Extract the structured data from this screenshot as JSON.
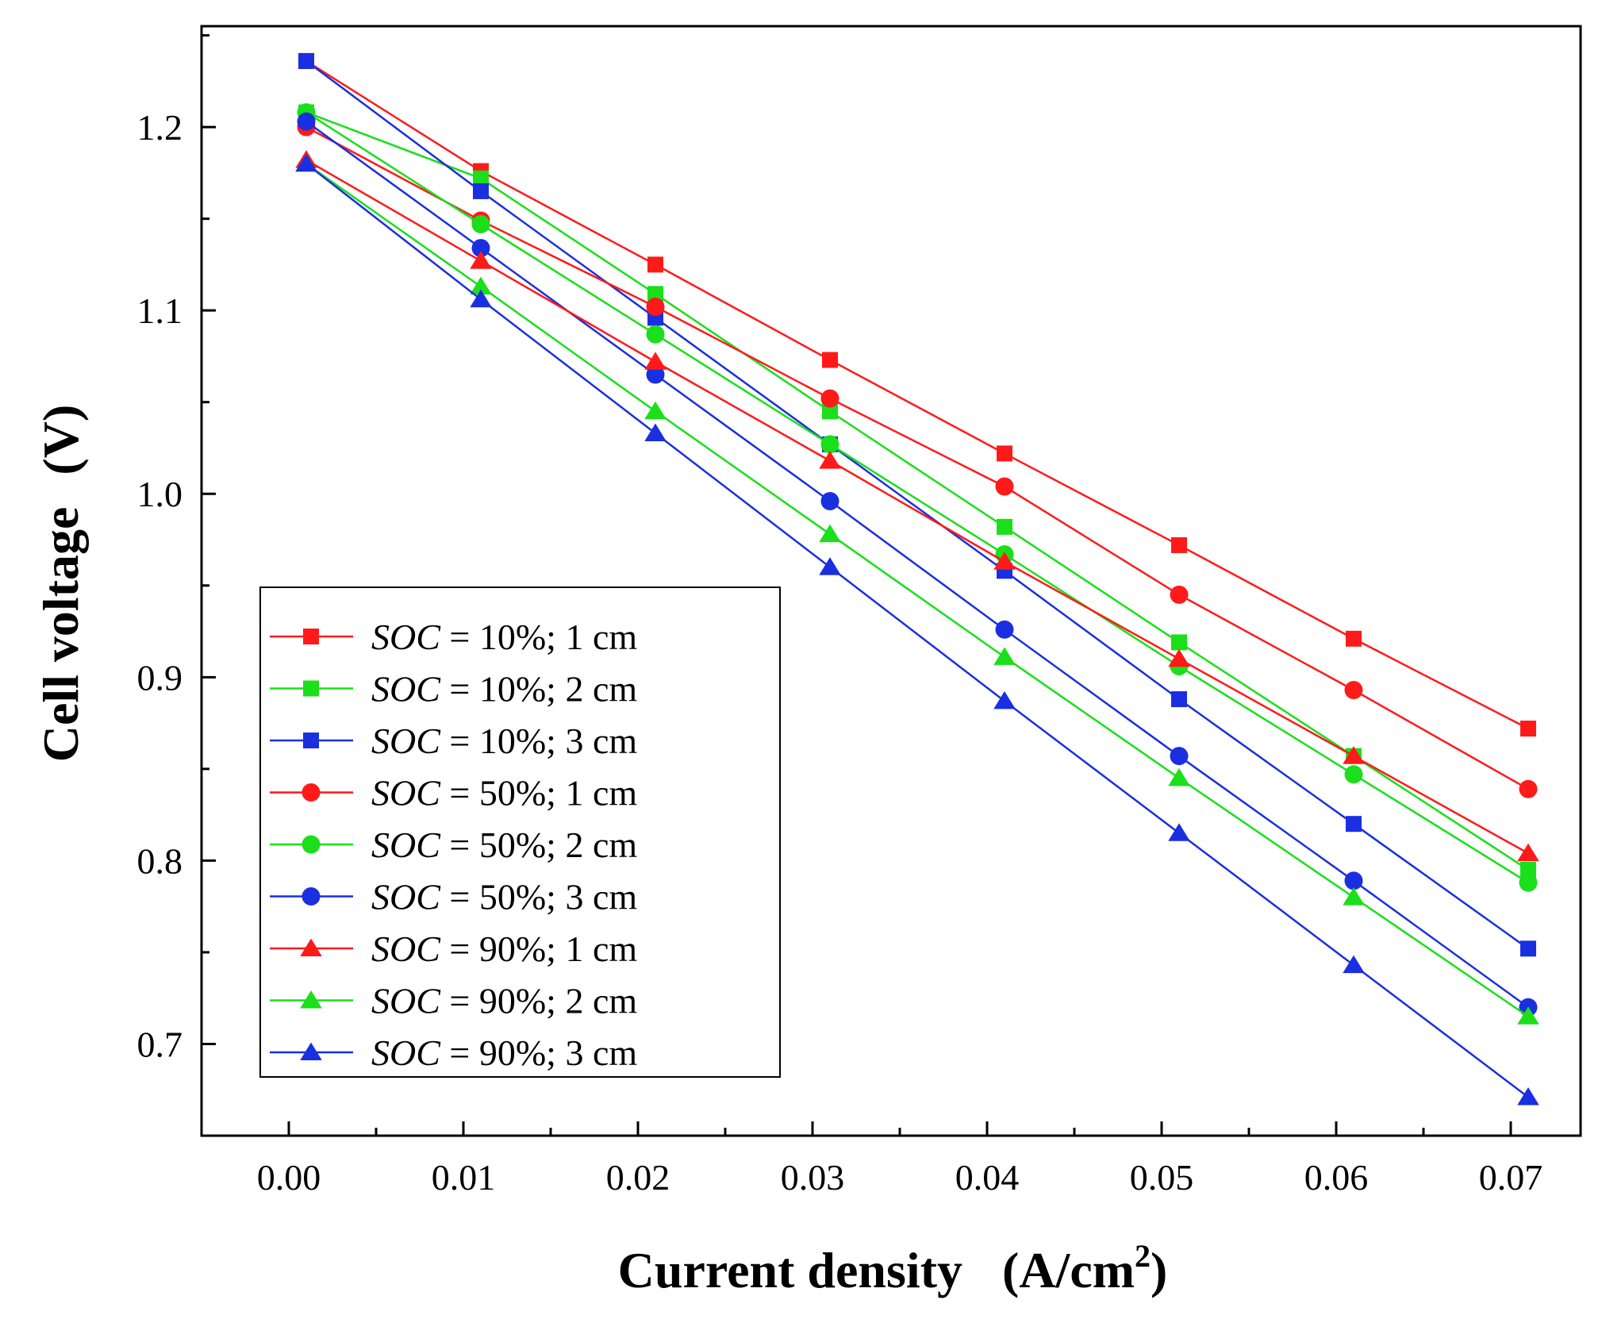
{
  "chart_data": {
    "type": "line",
    "title": "",
    "xlabel": "Current density",
    "xlabel_unit": "(A/cm",
    "xlabel_unit_sup": "2",
    "xlabel_unit_end": ")",
    "ylabel": "Cell voltage",
    "ylabel_unit": "(V)",
    "xlim": [
      -0.005,
      0.074
    ],
    "ylim": [
      0.65,
      1.255
    ],
    "x_ticks": [
      "0.00",
      "0.01",
      "0.02",
      "0.03",
      "0.04",
      "0.05",
      "0.06",
      "0.07"
    ],
    "y_ticks": [
      "0.7",
      "0.8",
      "0.9",
      "1.0",
      "1.1",
      "1.2"
    ],
    "legend_position": "bottom-left",
    "x": [
      0.001,
      0.011,
      0.021,
      0.031,
      0.041,
      0.051,
      0.061,
      0.071
    ],
    "series": [
      {
        "name": "SOC = 10%;   1 cm",
        "var": "SOC",
        "rest": " = 10%;   1 cm",
        "color": "#ff1a1a",
        "marker": "square",
        "values": [
          1.236,
          1.176,
          1.125,
          1.073,
          1.022,
          0.972,
          0.921,
          0.872
        ]
      },
      {
        "name": "SOC = 10%;   2 cm",
        "var": "SOC",
        "rest": " = 10%;   2 cm",
        "color": "#1adf1a",
        "marker": "square",
        "values": [
          1.208,
          1.172,
          1.109,
          1.045,
          0.982,
          0.919,
          0.857,
          0.795
        ]
      },
      {
        "name": "SOC = 10%;   3 cm",
        "var": "SOC",
        "rest": " = 10%;   3 cm",
        "color": "#1a2fdf",
        "marker": "square",
        "values": [
          1.236,
          1.165,
          1.096,
          1.027,
          0.958,
          0.888,
          0.82,
          0.752
        ]
      },
      {
        "name": "SOC = 50%;   1 cm",
        "var": "SOC",
        "rest": " = 50%;   1 cm",
        "color": "#ff1a1a",
        "marker": "circle",
        "values": [
          1.2,
          1.149,
          1.102,
          1.052,
          1.004,
          0.945,
          0.893,
          0.839
        ]
      },
      {
        "name": "SOC = 50%;   2 cm",
        "var": "SOC",
        "rest": " = 50%;   2 cm",
        "color": "#1adf1a",
        "marker": "circle",
        "values": [
          1.208,
          1.147,
          1.087,
          1.027,
          0.967,
          0.906,
          0.847,
          0.788
        ]
      },
      {
        "name": "SOC = 50%;   3 cm",
        "var": "SOC",
        "rest": " = 50%;   3 cm",
        "color": "#1a2fdf",
        "marker": "circle",
        "values": [
          1.203,
          1.134,
          1.065,
          0.996,
          0.926,
          0.857,
          0.789,
          0.72
        ]
      },
      {
        "name": "SOC = 90%;   1 cm",
        "var": "SOC",
        "rest": " = 90%;   1 cm",
        "color": "#ff1a1a",
        "marker": "triangle",
        "values": [
          1.182,
          1.127,
          1.072,
          1.018,
          0.963,
          0.91,
          0.857,
          0.804
        ]
      },
      {
        "name": "SOC = 90%;   2 cm",
        "var": "SOC",
        "rest": " = 90%;   2 cm",
        "color": "#1adf1a",
        "marker": "triangle",
        "values": [
          1.18,
          1.113,
          1.045,
          0.978,
          0.911,
          0.845,
          0.78,
          0.715
        ]
      },
      {
        "name": "SOC = 90%;   3 cm",
        "var": "SOC",
        "rest": " = 90%;   3 cm",
        "color": "#1a2fdf",
        "marker": "triangle",
        "values": [
          1.18,
          1.106,
          1.033,
          0.96,
          0.887,
          0.815,
          0.743,
          0.671
        ]
      }
    ]
  }
}
